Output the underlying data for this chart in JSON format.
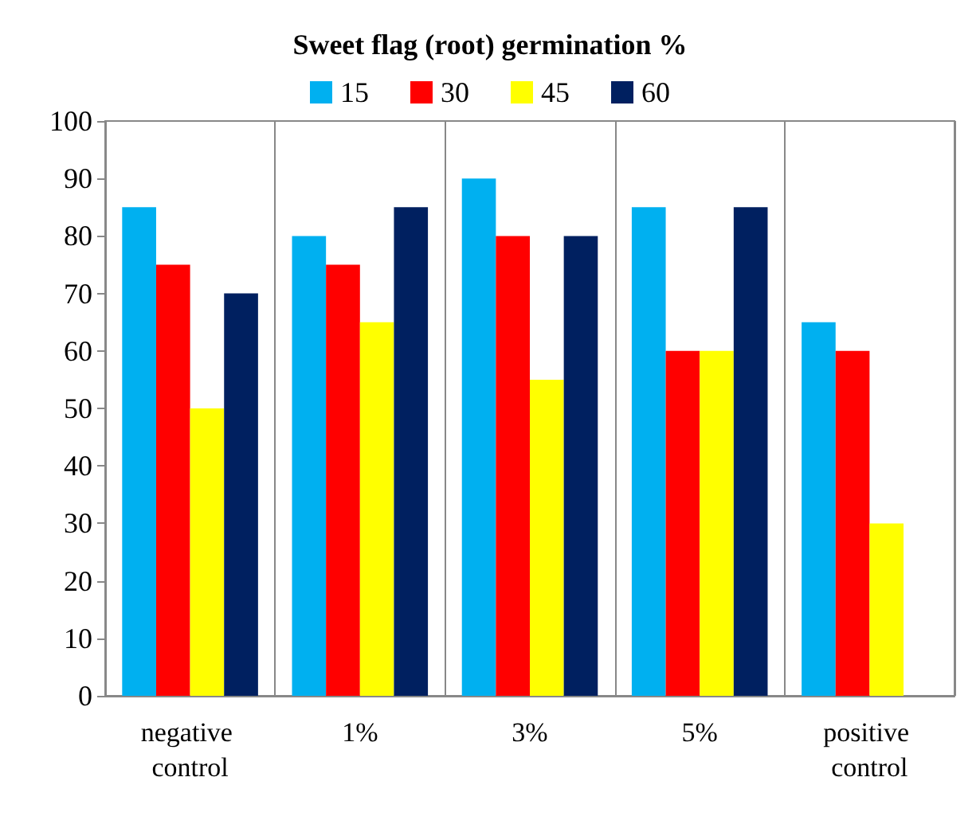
{
  "chart_data": {
    "type": "bar",
    "title": "Sweet flag (root) germination %",
    "categories": [
      "negative control",
      "1%",
      "3%",
      "5%",
      "positive control"
    ],
    "series": [
      {
        "name": "15",
        "color": "#00b0f0",
        "values": [
          85,
          80,
          90,
          85,
          65
        ]
      },
      {
        "name": "30",
        "color": "#ff0000",
        "values": [
          75,
          75,
          80,
          60,
          60
        ]
      },
      {
        "name": "45",
        "color": "#ffff00",
        "values": [
          50,
          65,
          55,
          60,
          30
        ]
      },
      {
        "name": "60",
        "color": "#002060",
        "values": [
          70,
          85,
          80,
          85,
          null
        ]
      }
    ],
    "ylim": [
      0,
      100
    ],
    "yticks": [
      0,
      10,
      20,
      30,
      40,
      50,
      60,
      70,
      80,
      90,
      100
    ],
    "grid": "x",
    "legend": "top"
  }
}
